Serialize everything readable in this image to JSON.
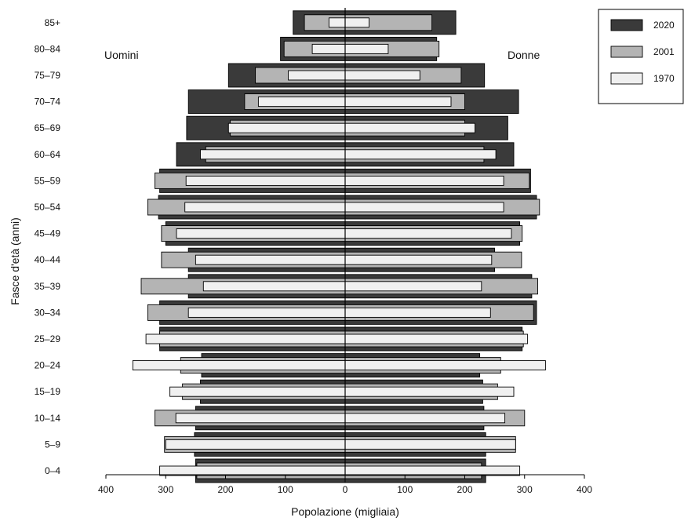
{
  "chart_data": {
    "type": "bar",
    "orientation": "horizontal",
    "subtype": "population-pyramid",
    "xlabel": "Popolazione (migliaia)",
    "ylabel": "Fasce d'età (anni)",
    "left_label": "Uomini",
    "right_label": "Donne",
    "x_ticks": [
      "400",
      "300",
      "200",
      "100",
      "0",
      "100",
      "200",
      "300",
      "400"
    ],
    "xlim": [
      -400,
      400
    ],
    "legend_position": "top-right",
    "categories": [
      "0–4",
      "5–9",
      "10–14",
      "15–19",
      "20–24",
      "25–29",
      "30–34",
      "35–39",
      "40–44",
      "45–49",
      "50–54",
      "55–59",
      "60–64",
      "65–69",
      "70–74",
      "75–79",
      "80–84",
      "85+"
    ],
    "series": [
      {
        "name": "2020",
        "color": "#3a3a3a",
        "men": [
          250,
          252,
          250,
          242,
          240,
          310,
          310,
          262,
          262,
          300,
          312,
          310,
          282,
          265,
          262,
          195,
          108,
          87
        ],
        "women": [
          235,
          235,
          232,
          230,
          225,
          296,
          320,
          312,
          250,
          292,
          320,
          310,
          282,
          272,
          290,
          233,
          153,
          185
        ]
      },
      {
        "name": "2001",
        "color": "#b4b4b4",
        "men": [
          248,
          302,
          318,
          272,
          275,
          310,
          330,
          341,
          307,
          307,
          330,
          318,
          233,
          192,
          168,
          150,
          102,
          68
        ],
        "women": [
          228,
          285,
          300,
          255,
          260,
          298,
          315,
          322,
          295,
          296,
          325,
          308,
          232,
          200,
          200,
          194,
          157,
          145
        ]
      },
      {
        "name": "1970",
        "color": "#f0f0f0",
        "men": [
          310,
          300,
          283,
          293,
          355,
          333,
          262,
          237,
          250,
          282,
          268,
          266,
          242,
          195,
          145,
          95,
          55,
          27
        ],
        "women": [
          292,
          285,
          267,
          282,
          335,
          305,
          243,
          228,
          245,
          278,
          265,
          265,
          252,
          217,
          177,
          125,
          72,
          40
        ]
      }
    ]
  }
}
